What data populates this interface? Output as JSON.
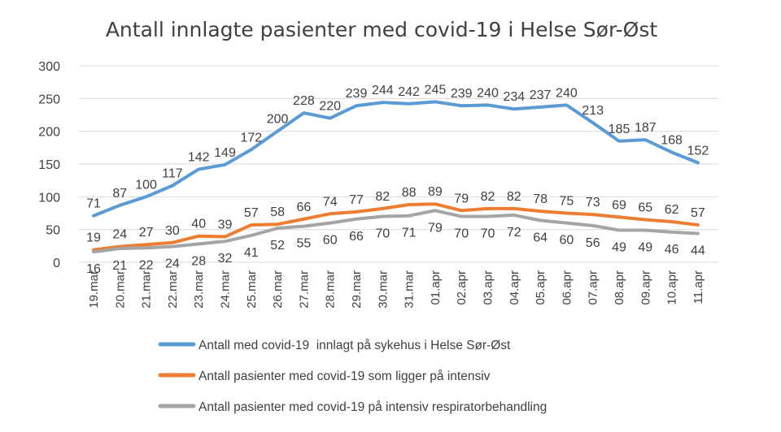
{
  "chart_data": {
    "type": "line",
    "title": "Antall innlagte pasienter med covid-19 i Helse Sør-Øst",
    "xlabel": "",
    "ylabel": "",
    "ylim": [
      0,
      300
    ],
    "yticks": [
      "0",
      "50",
      "100",
      "150",
      "200",
      "250",
      "300"
    ],
    "grid": true,
    "legend_position": "bottom",
    "categories": [
      "19.mar",
      "20.mar",
      "21.mar",
      "22.mar",
      "23.mar",
      "24.mar",
      "25.mar",
      "26.mar",
      "27.mar",
      "28.mar",
      "29.mar",
      "30.mar",
      "31.mar",
      "01.apr",
      "02.apr",
      "03.apr",
      "04.apr",
      "05.apr",
      "06.apr",
      "07.apr",
      "08.apr",
      "09.apr",
      "10.apr",
      "11.apr"
    ],
    "series": [
      {
        "name": "Antall med covid-19  innlagt på sykehus i Helse Sør-Øst",
        "color": "#5b9bd5",
        "values": [
          71,
          87,
          100,
          117,
          142,
          149,
          172,
          200,
          228,
          220,
          239,
          244,
          242,
          245,
          239,
          240,
          234,
          237,
          240,
          213,
          185,
          187,
          168,
          152
        ]
      },
      {
        "name": "Antall pasienter med covid-19 som ligger på intensiv",
        "color": "#ed7d31",
        "values": [
          19,
          24,
          27,
          30,
          40,
          39,
          57,
          58,
          66,
          74,
          77,
          82,
          88,
          89,
          79,
          82,
          82,
          78,
          75,
          73,
          69,
          65,
          62,
          57
        ]
      },
      {
        "name": "Antall pasienter med covid-19 på intensiv respiratorbehandling",
        "color": "#a5a5a5",
        "values": [
          16,
          21,
          22,
          24,
          28,
          32,
          41,
          52,
          55,
          60,
          66,
          70,
          71,
          79,
          70,
          70,
          72,
          64,
          60,
          56,
          49,
          49,
          46,
          44
        ]
      }
    ]
  }
}
